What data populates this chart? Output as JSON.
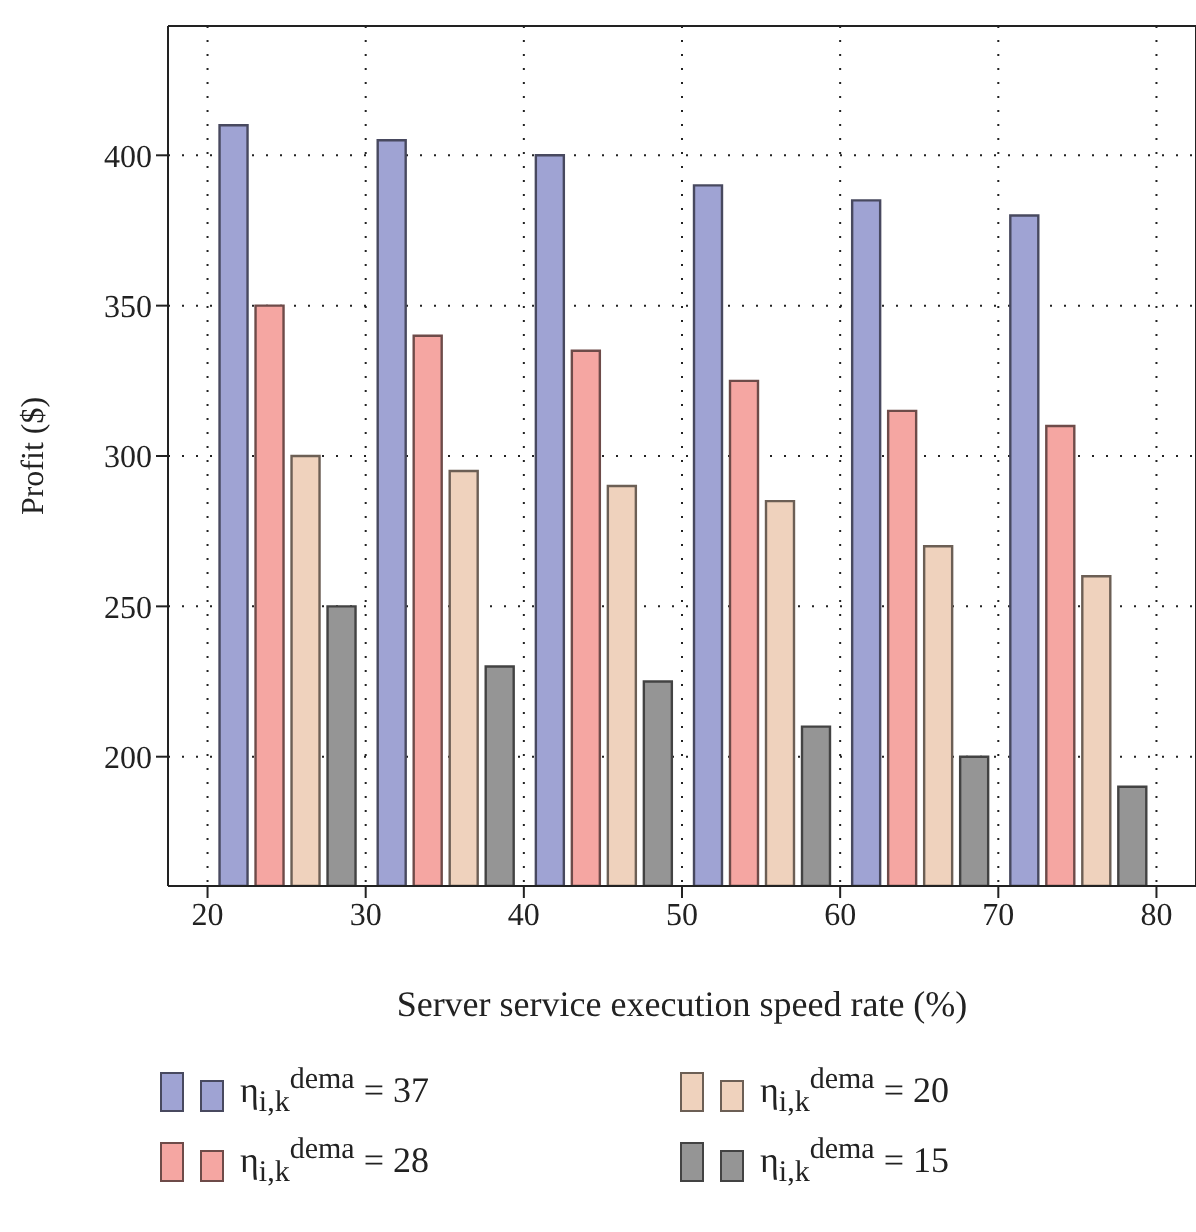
{
  "chart_data": {
    "type": "bar",
    "xlabel": "Server service execution speed rate (%)",
    "ylabel": "Profit ($)",
    "x": [
      25,
      35,
      45,
      55,
      65,
      75
    ],
    "xlim": [
      17.5,
      82.5
    ],
    "xticks": [
      20,
      30,
      40,
      50,
      60,
      70,
      80
    ],
    "ylim": [
      157,
      443
    ],
    "yticks": [
      200,
      250,
      300,
      350,
      400
    ],
    "grid": true,
    "legend": "bottom",
    "series": [
      {
        "name": "η$_{i,k}$$^{dema}$ = 37",
        "color": "#9fa3d3",
        "values": [
          410,
          405,
          400,
          390,
          385,
          380
        ]
      },
      {
        "name": "η$_{i,k}$$^{dema}$ = 28",
        "color": "#f5a6a2",
        "values": [
          350,
          340,
          335,
          325,
          315,
          310
        ]
      },
      {
        "name": "η$_{i,k}$$^{dema}$ = 20",
        "color": "#efd2bd",
        "values": [
          300,
          295,
          290,
          285,
          270,
          260
        ]
      },
      {
        "name": "η$_{i,k}$$^{dema}$ = 15",
        "color": "#959595",
        "values": [
          250,
          230,
          225,
          210,
          200,
          190
        ]
      }
    ]
  }
}
